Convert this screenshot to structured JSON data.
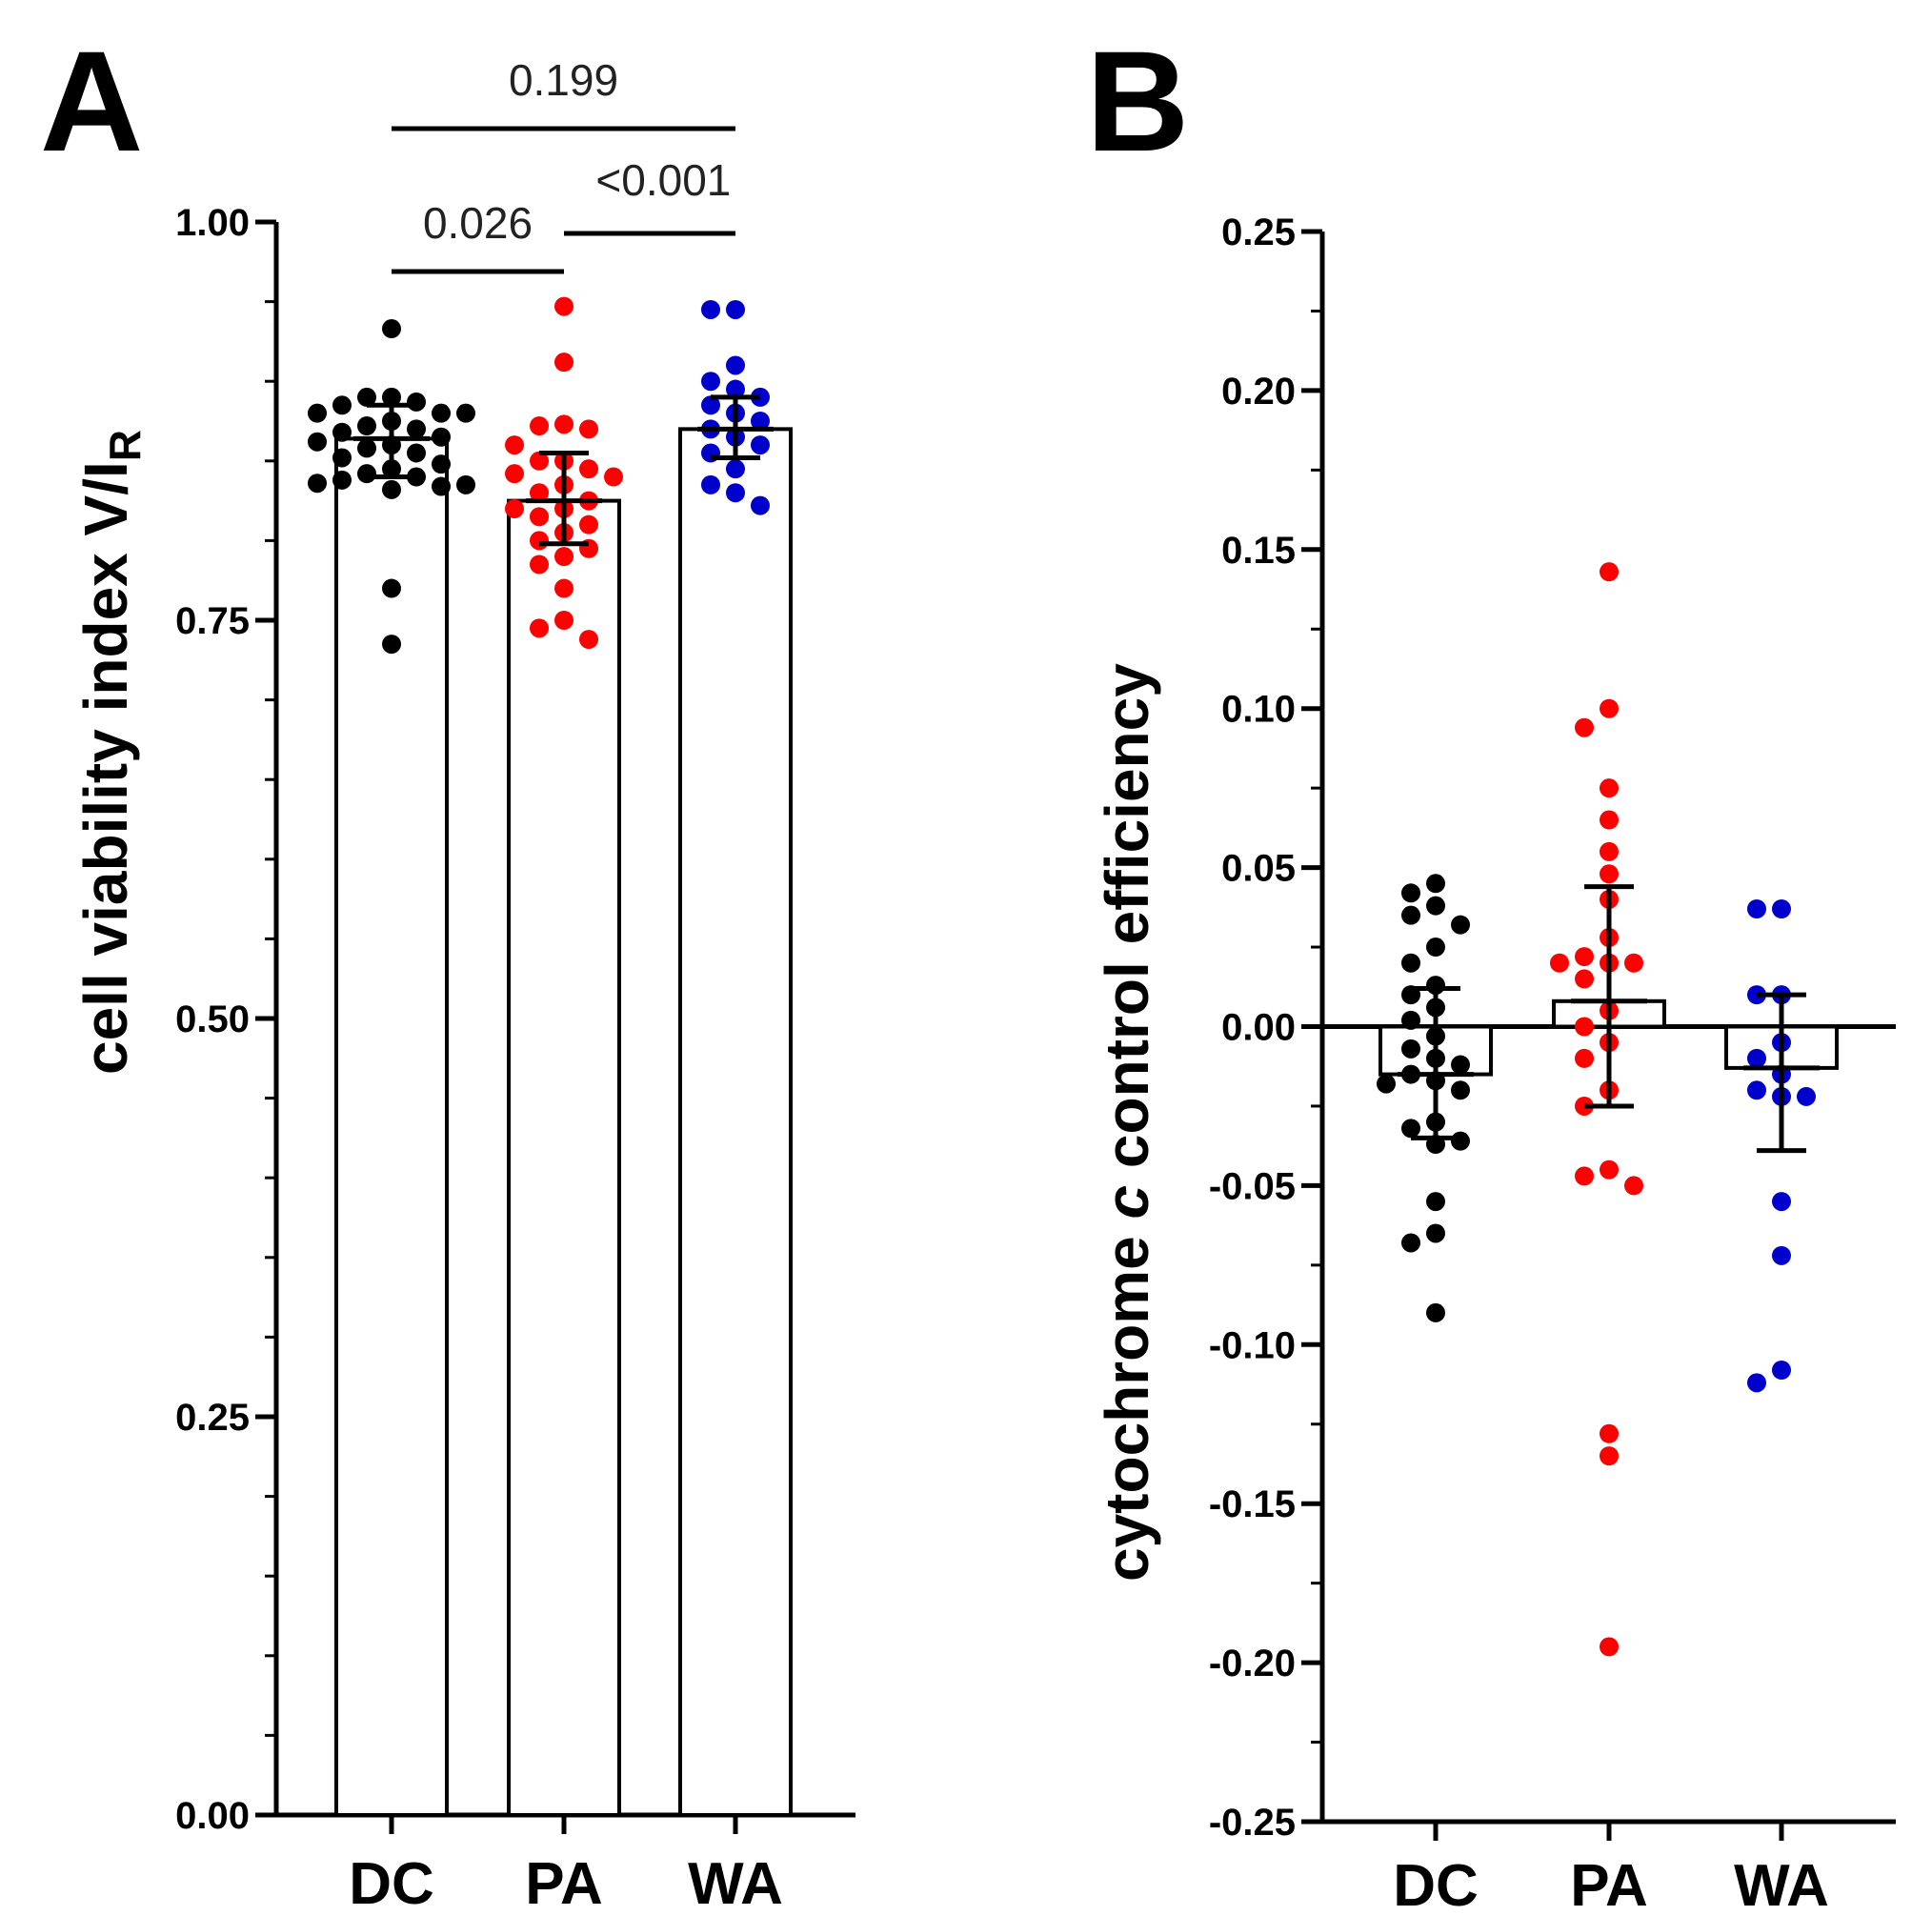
{
  "chart_data": [
    {
      "panel": "A",
      "type": "bar",
      "ylabel": "cell viability index V/I",
      "ylabel_subscript": "R",
      "ylim": [
        0,
        1
      ],
      "yticks": [
        "0.00",
        "0.25",
        "0.50",
        "0.75",
        "1.00"
      ],
      "ytick_values": [
        0,
        0.25,
        0.5,
        0.75,
        1.0
      ],
      "categories": [
        "DC",
        "PA",
        "WA"
      ],
      "colors": [
        "#000000",
        "#ff0000",
        "#0000cc"
      ],
      "means": [
        0.864,
        0.825,
        0.87
      ],
      "ci_low": [
        0.84,
        0.798,
        0.852
      ],
      "ci_high": [
        0.885,
        0.855,
        0.89
      ],
      "points": [
        [
          0.933,
          0.89,
          0.89,
          0.887,
          0.885,
          0.88,
          0.88,
          0.88,
          0.875,
          0.872,
          0.87,
          0.868,
          0.865,
          0.862,
          0.86,
          0.858,
          0.855,
          0.852,
          0.848,
          0.845,
          0.842,
          0.84,
          0.838,
          0.836,
          0.835,
          0.834,
          0.832,
          0.77,
          0.735
        ],
        [
          0.947,
          0.912,
          0.873,
          0.872,
          0.87,
          0.86,
          0.85,
          0.85,
          0.845,
          0.842,
          0.84,
          0.835,
          0.83,
          0.825,
          0.82,
          0.82,
          0.815,
          0.81,
          0.805,
          0.8,
          0.795,
          0.79,
          0.785,
          0.77,
          0.75,
          0.745,
          0.738
        ],
        [
          0.945,
          0.945,
          0.91,
          0.9,
          0.895,
          0.89,
          0.885,
          0.88,
          0.875,
          0.87,
          0.865,
          0.86,
          0.855,
          0.845,
          0.835,
          0.83,
          0.822
        ]
      ],
      "significance": [
        {
          "from": "DC",
          "to": "PA",
          "label": "0.026"
        },
        {
          "from": "PA",
          "to": "WA",
          "label": "<0.001"
        },
        {
          "from": "DC",
          "to": "WA",
          "label": "0.199"
        }
      ]
    },
    {
      "panel": "B",
      "type": "bar",
      "ylabel_prefix": "cytochrome ",
      "ylabel_italic": "c",
      "ylabel_suffix": " control efficiency",
      "ylim": [
        -0.25,
        0.25
      ],
      "yticks": [
        "-0.25",
        "-0.20",
        "-0.15",
        "-0.10",
        "-0.05",
        "0.00",
        "0.05",
        "0.10",
        "0.15",
        "0.20",
        "0.25"
      ],
      "ytick_values": [
        -0.25,
        -0.2,
        -0.15,
        -0.1,
        -0.05,
        0,
        0.05,
        0.1,
        0.15,
        0.2,
        0.25
      ],
      "categories": [
        "DC",
        "PA",
        "WA"
      ],
      "colors": [
        "#000000",
        "#ff0000",
        "#0000cc"
      ],
      "means": [
        -0.015,
        0.008,
        -0.013
      ],
      "ci_low": [
        -0.035,
        -0.025,
        -0.039
      ],
      "ci_high": [
        0.012,
        0.044,
        0.01
      ],
      "points": [
        [
          0.045,
          0.042,
          0.038,
          0.035,
          0.032,
          0.025,
          0.02,
          0.013,
          0.01,
          0.006,
          0.002,
          -0.003,
          -0.007,
          -0.01,
          -0.012,
          -0.015,
          -0.017,
          -0.018,
          -0.02,
          -0.03,
          -0.032,
          -0.036,
          -0.037,
          -0.055,
          -0.065,
          -0.068,
          -0.09
        ],
        [
          0.143,
          0.1,
          0.094,
          0.075,
          0.065,
          0.055,
          0.048,
          0.04,
          0.028,
          0.022,
          0.02,
          0.02,
          0.02,
          0.015,
          0.005,
          0,
          -0.005,
          -0.01,
          -0.02,
          -0.025,
          -0.045,
          -0.047,
          -0.05,
          -0.128,
          -0.135,
          -0.195
        ],
        [
          0.037,
          0.037,
          0.01,
          0.01,
          -0.005,
          -0.01,
          -0.015,
          -0.02,
          -0.022,
          -0.022,
          -0.055,
          -0.072,
          -0.108,
          -0.112
        ]
      ]
    }
  ],
  "panels": {
    "a": {
      "letter": "A"
    },
    "b": {
      "letter": "B"
    }
  }
}
